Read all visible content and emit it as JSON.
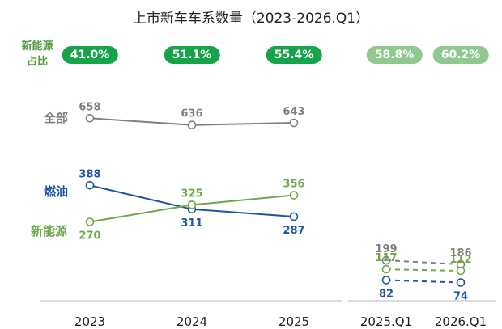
{
  "chart_data": {
    "type": "line",
    "title": "上市新车车系数量（2023-2026.Q1）",
    "share_label": "新能源占比",
    "groups": [
      {
        "categories": [
          "2023",
          "2024",
          "2025"
        ],
        "share": [
          "41.0%",
          "51.1%",
          "55.4%"
        ],
        "series": [
          {
            "name": "全部",
            "values": [
              658,
              636,
              643
            ],
            "color": "#808080"
          },
          {
            "name": "燃油",
            "values": [
              388,
              311,
              287
            ],
            "color": "#1f55a8"
          },
          {
            "name": "新能源",
            "values": [
              270,
              325,
              356
            ],
            "color": "#6ea84a"
          }
        ]
      },
      {
        "categories": [
          "2025.Q1",
          "2026.Q1"
        ],
        "share": [
          "58.8%",
          "60.2%"
        ],
        "series": [
          {
            "name": "全部",
            "values": [
              199,
              186
            ],
            "color": "#808080"
          },
          {
            "name": "燃油",
            "values": [
              82,
              74
            ],
            "color": "#1f55a8"
          },
          {
            "name": "新能源",
            "values": [
              117,
              112
            ],
            "color": "#6ea84a"
          }
        ]
      }
    ]
  }
}
